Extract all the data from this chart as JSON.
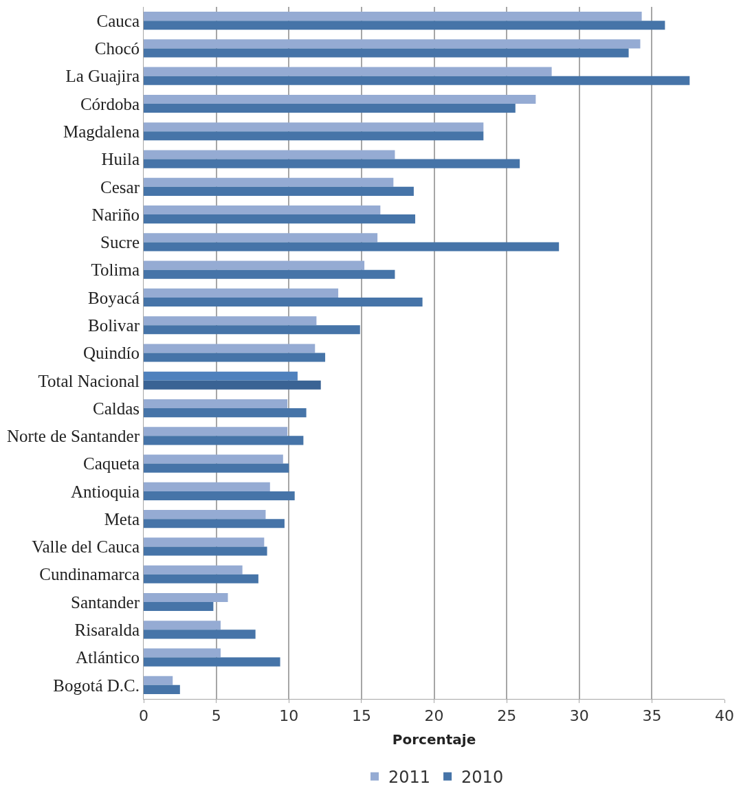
{
  "chart_data": {
    "type": "bar",
    "orientation": "horizontal",
    "xlabel": "Porcentaje",
    "categories": [
      "Cauca",
      "Chocó",
      "La Guajira",
      "Córdoba",
      "Magdalena",
      "Huila",
      "Cesar",
      "Nariño",
      "Sucre",
      "Tolima",
      "Boyacá",
      "Bolivar",
      "Quindío",
      "Total Nacional",
      "Caldas",
      "Norte de Santander",
      "Caqueta",
      "Antioquia",
      "Meta",
      "Valle del Cauca",
      "Cundinamarca",
      "Santander",
      "Risaralda",
      "Atlántico",
      "Bogotá D.C."
    ],
    "series": [
      {
        "name": "2011",
        "colors": [
          "#95abd3",
          "#95abd3",
          "#95abd3",
          "#95abd3",
          "#95abd3",
          "#95abd3",
          "#95abd3",
          "#95abd3",
          "#95abd3",
          "#95abd3",
          "#95abd3",
          "#95abd3",
          "#95abd3",
          "#4f81bd",
          "#95abd3",
          "#95abd3",
          "#95abd3",
          "#95abd3",
          "#95abd3",
          "#95abd3",
          "#95abd3",
          "#95abd3",
          "#95abd3",
          "#95abd3",
          "#95abd3"
        ],
        "values": [
          34.3,
          34.2,
          28.1,
          27.0,
          23.4,
          17.3,
          17.2,
          16.3,
          16.1,
          15.2,
          13.4,
          11.9,
          11.8,
          10.6,
          9.9,
          9.9,
          9.6,
          8.7,
          8.4,
          8.3,
          6.8,
          5.8,
          5.3,
          5.3,
          2.0
        ]
      },
      {
        "name": "2010",
        "colors": [
          "#4674a8",
          "#4674a8",
          "#4674a8",
          "#4674a8",
          "#4674a8",
          "#4674a8",
          "#4674a8",
          "#4674a8",
          "#4674a8",
          "#4674a8",
          "#4674a8",
          "#4674a8",
          "#4674a8",
          "#3a6394",
          "#4674a8",
          "#4674a8",
          "#4674a8",
          "#4674a8",
          "#4674a8",
          "#4674a8",
          "#4674a8",
          "#4674a8",
          "#4674a8",
          "#4674a8",
          "#4674a8"
        ],
        "values": [
          35.9,
          33.4,
          37.6,
          25.6,
          23.4,
          25.9,
          18.6,
          18.7,
          28.6,
          17.3,
          19.2,
          14.9,
          12.5,
          12.2,
          11.2,
          11.0,
          10.0,
          10.4,
          9.7,
          8.5,
          7.9,
          4.8,
          7.7,
          9.4,
          2.5
        ]
      }
    ],
    "xlim": [
      0,
      40
    ],
    "xticks": [
      0,
      5,
      10,
      15,
      20,
      25,
      30,
      35,
      40
    ],
    "grid": "x",
    "legend": "bottom"
  }
}
